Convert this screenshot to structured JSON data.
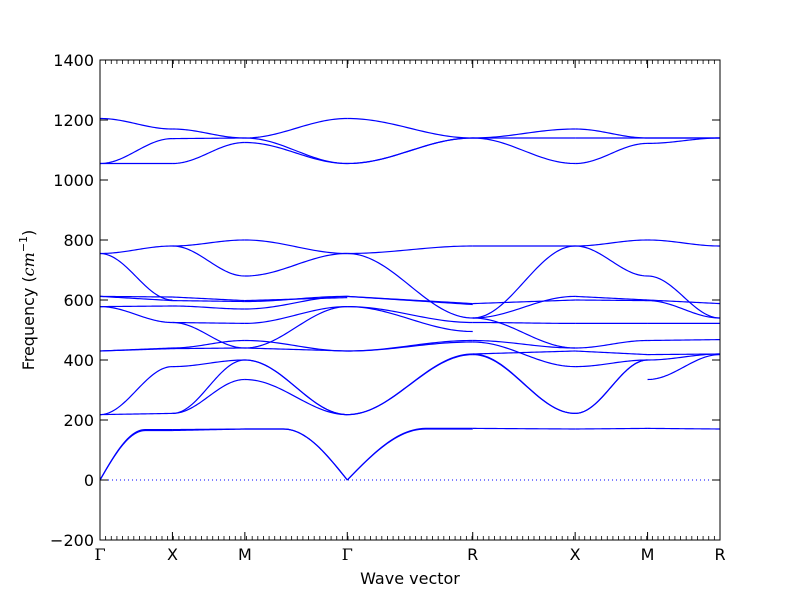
{
  "colors": {
    "band": "#0000ff",
    "zero_line": "#0000ff",
    "frame": "#000000",
    "background": "#ffffff"
  },
  "chart_data": {
    "type": "line",
    "title": "",
    "xlabel": "Wave vector",
    "ylabel_text": "Frequency (",
    "ylabel_unit_base": "cm",
    "ylabel_unit_exp": "−1",
    "ylabel_close": ")",
    "ylim": [
      -200,
      1400
    ],
    "yticks": [
      -200,
      0,
      200,
      400,
      600,
      800,
      1000,
      1200,
      1400
    ],
    "grid": false,
    "legend": "none",
    "kpoints": [
      {
        "label": "Γ",
        "x": 0.0
      },
      {
        "label": "X",
        "x": 0.5
      },
      {
        "label": "M",
        "x": 1.0
      },
      {
        "label": "Γ",
        "x": 1.7071
      },
      {
        "label": "R",
        "x": 2.5731
      },
      {
        "label": "X",
        "x": 3.2802
      },
      {
        "label": "M",
        "x": 3.7802
      },
      {
        "label": "R",
        "x": 4.2802
      }
    ],
    "zero_line": true,
    "bands": [
      {
        "segment": "Γ-X",
        "start": 0,
        "end": 165,
        "shape": "sqrt"
      },
      {
        "segment": "Γ-X",
        "start": 0,
        "end": 168,
        "shape": "sqrt"
      },
      {
        "segment": "X-M",
        "start": 165,
        "end": 170,
        "shape": "flat"
      },
      {
        "segment": "X-M",
        "start": 168,
        "end": 170,
        "shape": "flat"
      },
      {
        "segment": "M-Γ",
        "start": 170,
        "end": 0,
        "shape": "sqrt-rev"
      },
      {
        "segment": "M-Γ",
        "start": 170,
        "end": 0,
        "shape": "sqrt-rev"
      },
      {
        "segment": "Γ-R",
        "start": 0,
        "end": 172,
        "shape": "sqrt"
      },
      {
        "segment": "Γ-R",
        "start": 0,
        "end": 170,
        "shape": "sqrt"
      },
      {
        "segment": "R-X",
        "start": 172,
        "end": 170,
        "shape": "flat"
      },
      {
        "segment": "X-M",
        "start": 170,
        "end": 172,
        "shape": "flat"
      },
      {
        "segment": "M-R",
        "start": 172,
        "end": 170,
        "shape": "flat"
      },
      {
        "segment": "Γ-X",
        "start": 218,
        "end": 222,
        "shape": "flat"
      },
      {
        "segment": "Γ-X",
        "start": 218,
        "end": 378,
        "shape": "s"
      },
      {
        "segment": "X-M",
        "start": 222,
        "end": 335,
        "shape": "s"
      },
      {
        "segment": "X-M",
        "start": 222,
        "end": 400,
        "shape": "s"
      },
      {
        "segment": "X-M",
        "start": 378,
        "end": 400,
        "shape": "s"
      },
      {
        "segment": "M-Γ",
        "start": 335,
        "end": 218,
        "shape": "s"
      },
      {
        "segment": "M-Γ",
        "start": 400,
        "end": 218,
        "shape": "s"
      },
      {
        "segment": "M-Γ",
        "start": 400,
        "end": 218,
        "shape": "s"
      },
      {
        "segment": "Γ-R",
        "start": 218,
        "end": 418,
        "shape": "s"
      },
      {
        "segment": "Γ-R",
        "start": 218,
        "end": 420,
        "shape": "s"
      },
      {
        "segment": "R-X",
        "start": 418,
        "end": 222,
        "shape": "s"
      },
      {
        "segment": "R-X",
        "start": 420,
        "end": 222,
        "shape": "s"
      },
      {
        "segment": "X-M",
        "start": 222,
        "end": 400,
        "shape": "s"
      },
      {
        "segment": "X-M",
        "start": 222,
        "end": 400,
        "shape": "s"
      },
      {
        "segment": "M-R",
        "start": 400,
        "end": 420,
        "shape": "s"
      },
      {
        "segment": "M-R",
        "start": 335,
        "end": 418,
        "shape": "s"
      },
      {
        "segment": "Γ-X",
        "start": 430,
        "end": 440,
        "shape": "flat"
      },
      {
        "segment": "Γ-X",
        "start": 430,
        "end": 438,
        "shape": "flat"
      },
      {
        "segment": "X-M",
        "start": 440,
        "end": 465,
        "shape": "s"
      },
      {
        "segment": "X-M",
        "start": 438,
        "end": 440,
        "shape": "flat"
      },
      {
        "segment": "M-Γ",
        "start": 465,
        "end": 430,
        "shape": "s"
      },
      {
        "segment": "M-Γ",
        "start": 440,
        "end": 430,
        "shape": "flat"
      },
      {
        "segment": "Γ-R",
        "start": 430,
        "end": 465,
        "shape": "s"
      },
      {
        "segment": "Γ-R",
        "start": 430,
        "end": 460,
        "shape": "s"
      },
      {
        "segment": "R-X",
        "start": 465,
        "end": 440,
        "shape": "s"
      },
      {
        "segment": "R-X",
        "start": 460,
        "end": 378,
        "shape": "s"
      },
      {
        "segment": "R-X",
        "start": 420,
        "end": 430,
        "shape": "flat"
      },
      {
        "segment": "X-M",
        "start": 440,
        "end": 465,
        "shape": "s"
      },
      {
        "segment": "X-M",
        "start": 378,
        "end": 400,
        "shape": "s"
      },
      {
        "segment": "X-M",
        "start": 430,
        "end": 418,
        "shape": "flat"
      },
      {
        "segment": "M-R",
        "start": 465,
        "end": 468,
        "shape": "flat"
      },
      {
        "segment": "M-R",
        "start": 418,
        "end": 420,
        "shape": "flat"
      },
      {
        "segment": "Γ-X",
        "start": 578,
        "end": 525,
        "shape": "s"
      },
      {
        "segment": "Γ-X",
        "start": 578,
        "end": 580,
        "shape": "flat"
      },
      {
        "segment": "Γ-X",
        "start": 612,
        "end": 598,
        "shape": "flat"
      },
      {
        "segment": "Γ-X",
        "start": 612,
        "end": 610,
        "shape": "flat"
      },
      {
        "segment": "X-M",
        "start": 525,
        "end": 440,
        "shape": "s"
      },
      {
        "segment": "X-M",
        "start": 525,
        "end": 522,
        "shape": "flat"
      },
      {
        "segment": "X-M",
        "start": 580,
        "end": 570,
        "shape": "s"
      },
      {
        "segment": "X-M",
        "start": 598,
        "end": 595,
        "shape": "flat"
      },
      {
        "segment": "X-M",
        "start": 610,
        "end": 598,
        "shape": "flat"
      },
      {
        "segment": "M-Γ",
        "start": 440,
        "end": 578,
        "shape": "s"
      },
      {
        "segment": "M-Γ",
        "start": 522,
        "end": 578,
        "shape": "s"
      },
      {
        "segment": "M-Γ",
        "start": 570,
        "end": 612,
        "shape": "s"
      },
      {
        "segment": "M-Γ",
        "start": 595,
        "end": 612,
        "shape": "s"
      },
      {
        "segment": "M-Γ",
        "start": 598,
        "end": 608,
        "shape": "flat"
      },
      {
        "segment": "Γ-R",
        "start": 578,
        "end": 495,
        "shape": "s"
      },
      {
        "segment": "Γ-R",
        "start": 578,
        "end": 525,
        "shape": "s"
      },
      {
        "segment": "Γ-R",
        "start": 612,
        "end": 588,
        "shape": "flat"
      },
      {
        "segment": "Γ-R",
        "start": 612,
        "end": 585,
        "shape": "flat"
      },
      {
        "segment": "R-X",
        "start": 540,
        "end": 612,
        "shape": "s"
      },
      {
        "segment": "R-X",
        "start": 525,
        "end": 522,
        "shape": "s"
      },
      {
        "segment": "R-X",
        "start": 588,
        "end": 600,
        "shape": "flat"
      },
      {
        "segment": "R-X",
        "start": 540,
        "end": 440,
        "shape": "s"
      },
      {
        "segment": "X-M",
        "start": 612,
        "end": 600,
        "shape": "flat"
      },
      {
        "segment": "X-M",
        "start": 522,
        "end": 522,
        "shape": "flat"
      },
      {
        "segment": "X-M",
        "start": 600,
        "end": 598,
        "shape": "flat"
      },
      {
        "segment": "M-R",
        "start": 600,
        "end": 588,
        "shape": "flat"
      },
      {
        "segment": "M-R",
        "start": 522,
        "end": 522,
        "shape": "flat"
      },
      {
        "segment": "M-R",
        "start": 598,
        "end": 540,
        "shape": "s"
      },
      {
        "segment": "Γ-X",
        "start": 755,
        "end": 780,
        "shape": "s"
      },
      {
        "segment": "Γ-X",
        "start": 755,
        "end": 600,
        "shape": "s"
      },
      {
        "segment": "X-M",
        "start": 780,
        "end": 800,
        "shape": "s"
      },
      {
        "segment": "X-M",
        "start": 780,
        "end": 680,
        "shape": "s"
      },
      {
        "segment": "M-Γ",
        "start": 800,
        "end": 755,
        "shape": "s"
      },
      {
        "segment": "M-Γ",
        "start": 680,
        "end": 755,
        "shape": "s"
      },
      {
        "segment": "Γ-R",
        "start": 755,
        "end": 780,
        "shape": "s"
      },
      {
        "segment": "Γ-R",
        "start": 755,
        "end": 540,
        "shape": "s"
      },
      {
        "segment": "R-X",
        "start": 780,
        "end": 780,
        "shape": "flat"
      },
      {
        "segment": "R-X",
        "start": 540,
        "end": 780,
        "shape": "s"
      },
      {
        "segment": "X-M",
        "start": 780,
        "end": 800,
        "shape": "s"
      },
      {
        "segment": "X-M",
        "start": 780,
        "end": 680,
        "shape": "s"
      },
      {
        "segment": "M-R",
        "start": 800,
        "end": 780,
        "shape": "s"
      },
      {
        "segment": "M-R",
        "start": 680,
        "end": 540,
        "shape": "s"
      },
      {
        "segment": "Γ-X",
        "start": 1205,
        "end": 1170,
        "shape": "s"
      },
      {
        "segment": "Γ-X",
        "start": 1055,
        "end": 1138,
        "shape": "s"
      },
      {
        "segment": "Γ-X",
        "start": 1055,
        "end": 1055,
        "shape": "flat"
      },
      {
        "segment": "X-M",
        "start": 1170,
        "end": 1140,
        "shape": "s"
      },
      {
        "segment": "X-M",
        "start": 1138,
        "end": 1140,
        "shape": "flat"
      },
      {
        "segment": "X-M",
        "start": 1055,
        "end": 1125,
        "shape": "s"
      },
      {
        "segment": "M-Γ",
        "start": 1140,
        "end": 1205,
        "shape": "s"
      },
      {
        "segment": "M-Γ",
        "start": 1140,
        "end": 1055,
        "shape": "s"
      },
      {
        "segment": "M-Γ",
        "start": 1125,
        "end": 1055,
        "shape": "s"
      },
      {
        "segment": "Γ-R",
        "start": 1205,
        "end": 1140,
        "shape": "s"
      },
      {
        "segment": "Γ-R",
        "start": 1055,
        "end": 1140,
        "shape": "s"
      },
      {
        "segment": "Γ-R",
        "start": 1055,
        "end": 1140,
        "shape": "s"
      },
      {
        "segment": "R-X",
        "start": 1140,
        "end": 1170,
        "shape": "s"
      },
      {
        "segment": "R-X",
        "start": 1140,
        "end": 1055,
        "shape": "s"
      },
      {
        "segment": "R-X",
        "start": 1140,
        "end": 1140,
        "shape": "flat"
      },
      {
        "segment": "X-M",
        "start": 1170,
        "end": 1140,
        "shape": "s"
      },
      {
        "segment": "X-M",
        "start": 1055,
        "end": 1122,
        "shape": "s"
      },
      {
        "segment": "X-M",
        "start": 1140,
        "end": 1140,
        "shape": "flat"
      },
      {
        "segment": "M-R",
        "start": 1140,
        "end": 1140,
        "shape": "flat"
      },
      {
        "segment": "M-R",
        "start": 1122,
        "end": 1140,
        "shape": "s"
      },
      {
        "segment": "M-R",
        "start": 1140,
        "end": 1140,
        "shape": "flat"
      }
    ]
  }
}
